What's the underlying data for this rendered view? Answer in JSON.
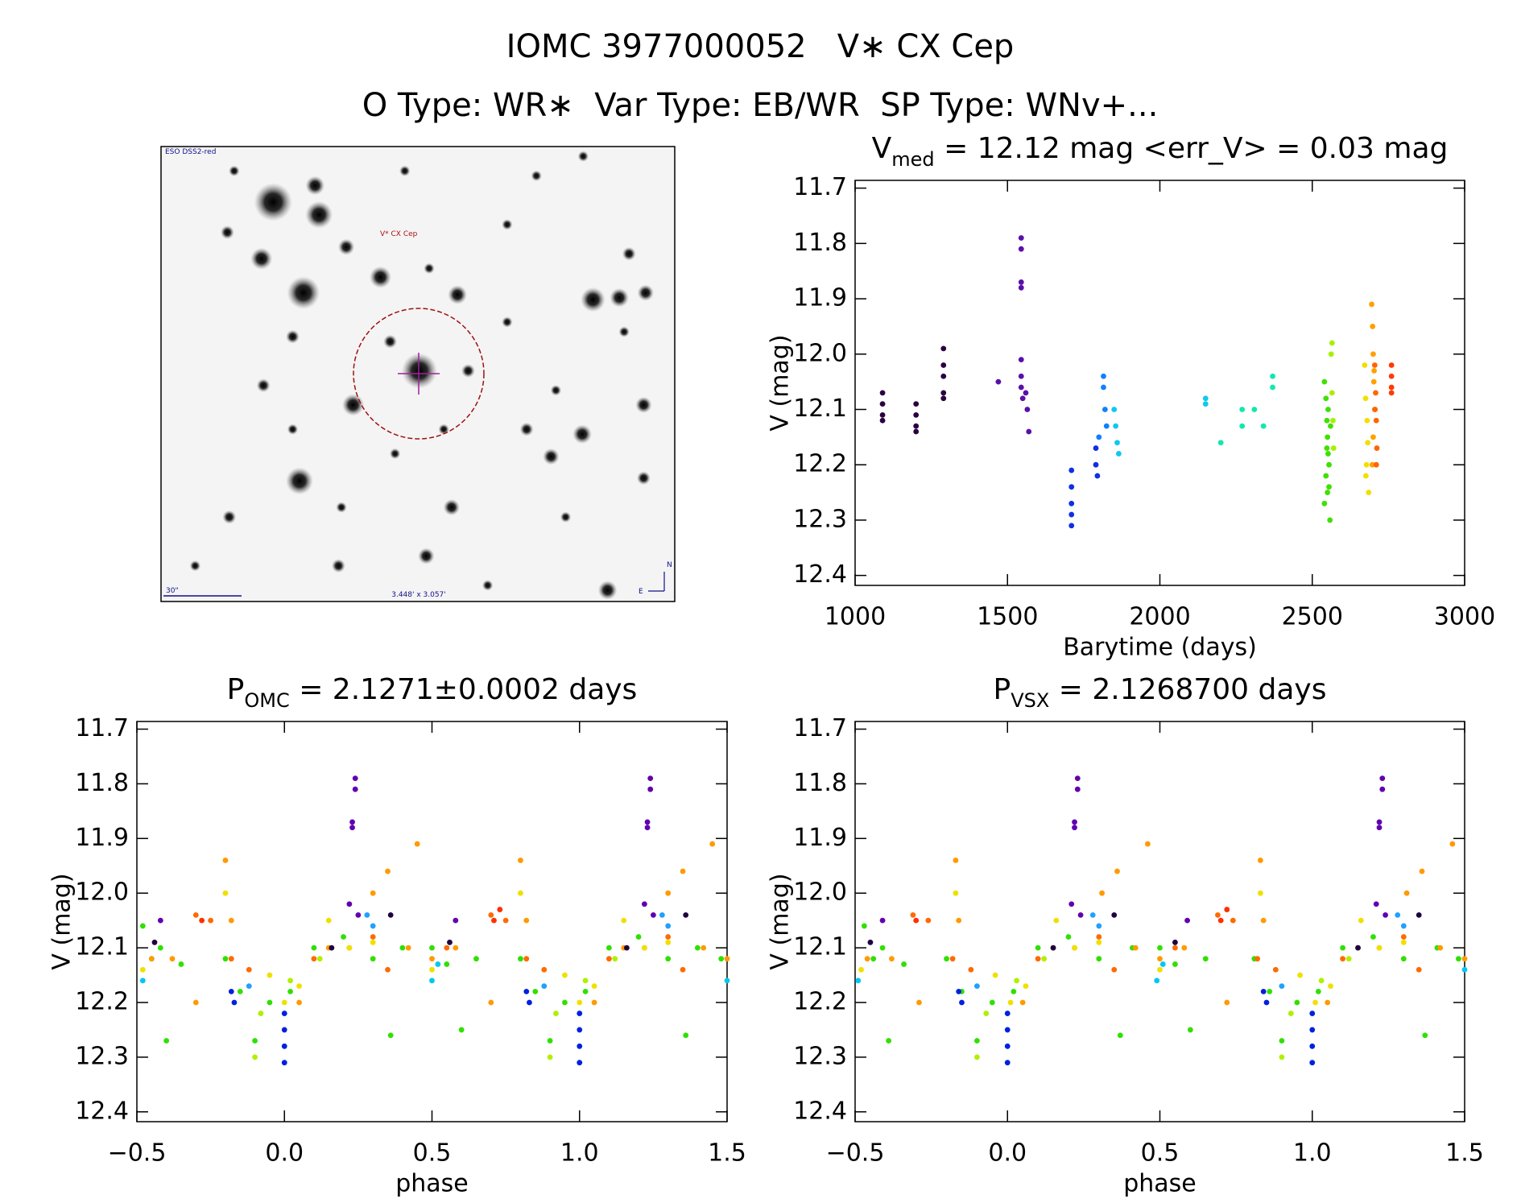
{
  "header": {
    "title": "IOMC 3977000052   V∗ CX Cep",
    "subtitle": "O Type: WR∗  Var Type: EB/WR  SP Type: WNv+..."
  },
  "image": {
    "survey": "ESO DSS2-red",
    "target": "V* CX Cep",
    "scale": "30\"",
    "fov": "3.448' x 3.057'",
    "north": "N",
    "east": "E"
  },
  "chart_data": [
    {
      "type": "scatter",
      "title": {
        "main": "V",
        "sub": "med",
        "rest": " = 12.12 mag <err_V> = 0.03 mag"
      },
      "x_label": "Barytime (days)",
      "y_label": "V (mag)",
      "xlim": [
        1000,
        3000
      ],
      "ylim": [
        12.418,
        11.686
      ],
      "xticks": [
        1000,
        1500,
        2000,
        2500,
        3000
      ],
      "yticks": [
        11.7,
        11.8,
        11.9,
        {
          "value": 12,
          "label": "12.0"
        },
        12.1,
        12.2,
        12.3,
        12.4
      ],
      "series": [
        {
          "color": "#2a0040",
          "x": [
            1090,
            1090,
            1090,
            1090,
            1200,
            1200,
            1200,
            1200,
            1290,
            1290,
            1290,
            1290,
            1290
          ],
          "y": [
            12.07,
            12.09,
            12.11,
            12.12,
            12.09,
            12.11,
            12.13,
            12.14,
            11.99,
            12.02,
            12.04,
            12.07,
            12.08
          ]
        },
        {
          "color": "#5a10a8",
          "x": [
            1470,
            1545,
            1545,
            1545,
            1545,
            1545,
            1545,
            1545,
            1550,
            1560,
            1565,
            1570
          ],
          "y": [
            12.05,
            11.79,
            11.81,
            11.87,
            11.88,
            12.01,
            12.04,
            12.06,
            12.08,
            12.07,
            12.1,
            12.14
          ]
        },
        {
          "color": "#1030e0",
          "x": [
            1710,
            1710,
            1710,
            1710,
            1710,
            1790,
            1790,
            1795
          ],
          "y": [
            12.21,
            12.24,
            12.27,
            12.29,
            12.31,
            12.17,
            12.2,
            12.22
          ]
        },
        {
          "color": "#1080ff",
          "x": [
            1800,
            1815,
            1815,
            1820,
            1825
          ],
          "y": [
            12.15,
            12.04,
            12.06,
            12.1,
            12.13
          ]
        },
        {
          "color": "#10c8f0",
          "x": [
            1850,
            1855,
            1860,
            1865,
            2150,
            2150
          ],
          "y": [
            12.1,
            12.13,
            12.16,
            12.18,
            12.08,
            12.09
          ]
        },
        {
          "color": "#10e8b0",
          "x": [
            2200,
            2270,
            2270,
            2310,
            2340,
            2370,
            2370
          ],
          "y": [
            12.16,
            12.1,
            12.13,
            12.1,
            12.13,
            12.04,
            12.06
          ]
        },
        {
          "color": "#40e000",
          "x": [
            2540,
            2545,
            2548,
            2550,
            2552,
            2555,
            2545,
            2550,
            2540,
            2558,
            2552,
            2548,
            2560,
            2555
          ],
          "y": [
            12.05,
            12.08,
            12.12,
            12.15,
            12.18,
            12.2,
            12.22,
            12.25,
            12.27,
            12.3,
            12.1,
            12.17,
            12.13,
            12.24
          ]
        },
        {
          "color": "#a8f000",
          "x": [
            2562,
            2565,
            2568,
            2570,
            2565
          ],
          "y": [
            12.0,
            12.07,
            12.12,
            12.17,
            11.98
          ]
        },
        {
          "color": "#f0e000",
          "x": [
            2672,
            2675,
            2680,
            2682,
            2678,
            2685,
            2676
          ],
          "y": [
            12.02,
            12.08,
            12.12,
            12.16,
            12.2,
            12.25,
            12.22
          ]
        },
        {
          "color": "#ffa000",
          "x": [
            2695,
            2698,
            2700,
            2702,
            2705,
            2700,
            2697,
            2703
          ],
          "y": [
            11.91,
            11.95,
            12.0,
            12.05,
            12.1,
            12.15,
            12.2,
            12.03
          ]
        },
        {
          "color": "#ff6400",
          "x": [
            2705,
            2708,
            2710,
            2712,
            2710,
            2706
          ],
          "y": [
            12.02,
            12.07,
            12.12,
            12.17,
            12.2,
            12.1
          ]
        },
        {
          "color": "#ff3a00",
          "x": [
            2760,
            2760,
            2760,
            2760
          ],
          "y": [
            12.02,
            12.04,
            12.06,
            12.07
          ]
        }
      ]
    },
    {
      "type": "scatter",
      "title": {
        "main": "P",
        "sub": "OMC",
        "rest": " = 2.1271±0.0002 days"
      },
      "x_label": "phase",
      "y_label": "V (mag)",
      "xlim": [
        -0.5,
        1.5
      ],
      "ylim": [
        12.418,
        11.686
      ],
      "xticks": [
        {
          "value": -0.5,
          "label": "−0.5"
        },
        {
          "value": 0,
          "label": "0.0"
        },
        0.5,
        {
          "value": 1,
          "label": "1.0"
        },
        1.5
      ],
      "yticks": [
        11.7,
        11.8,
        11.9,
        {
          "value": 12,
          "label": "12.0"
        },
        12.1,
        12.2,
        12.3,
        12.4
      ],
      "series": [
        {
          "color": "#30e000",
          "x": [
            -0.48,
            -0.45,
            -0.42,
            -0.4,
            -0.35,
            -0.2,
            -0.15,
            -0.1,
            -0.05,
            0.02,
            0.1,
            0.2,
            0.3,
            0.36,
            0.4,
            0.5,
            0.55,
            0.6,
            0.65,
            0.8,
            0.85,
            0.9,
            0.95,
            1.02,
            1.1,
            1.2,
            1.3,
            1.36,
            1.4,
            1.48
          ],
          "y": [
            12.06,
            12.12,
            12.1,
            12.27,
            12.13,
            12.12,
            12.18,
            12.27,
            12.2,
            12.18,
            12.1,
            12.08,
            12.12,
            12.26,
            12.1,
            12.1,
            12.13,
            12.25,
            12.12,
            12.12,
            12.18,
            12.27,
            12.2,
            12.18,
            12.1,
            12.08,
            12.12,
            12.26,
            12.1,
            12.12
          ]
        },
        {
          "color": "#ff9a00",
          "x": [
            -0.45,
            -0.38,
            -0.3,
            -0.2,
            -0.18,
            0.05,
            0.15,
            0.3,
            0.35,
            0.42,
            0.45,
            0.5,
            0.58,
            0.7,
            0.8,
            0.82,
            1.05,
            1.15,
            1.3,
            1.35,
            1.42,
            1.45,
            1.5
          ],
          "y": [
            12.12,
            12.12,
            12.2,
            11.94,
            12.05,
            12.2,
            12.1,
            12.0,
            11.96,
            12.1,
            11.91,
            12.12,
            12.1,
            12.2,
            11.94,
            12.05,
            12.2,
            12.1,
            12.0,
            11.96,
            12.1,
            11.91,
            12.12
          ]
        },
        {
          "color": "#ff6a00",
          "x": [
            -0.3,
            -0.25,
            -0.18,
            -0.12,
            0.1,
            0.22,
            0.3,
            0.35,
            0.55,
            0.7,
            0.75,
            0.82,
            0.88,
            1.1,
            1.22,
            1.3,
            1.35
          ],
          "y": [
            12.04,
            12.05,
            12.12,
            12.14,
            12.12,
            12.1,
            12.08,
            12.14,
            12.1,
            12.04,
            12.05,
            12.12,
            12.14,
            12.12,
            12.1,
            12.08,
            12.14
          ]
        },
        {
          "color": "#ff3000",
          "x": [
            -0.28,
            0.71,
            0.73
          ],
          "y": [
            12.05,
            12.05,
            12.03
          ]
        },
        {
          "color": "#f0e000",
          "x": [
            -0.48,
            -0.2,
            -0.05,
            0,
            0.05,
            0.15,
            0.22,
            0.3,
            0.5,
            0.8,
            0.95,
            1,
            1.05,
            1.15,
            1.22,
            1.3
          ],
          "y": [
            12.14,
            12.0,
            12.15,
            12.2,
            12.17,
            12.05,
            12.1,
            12.09,
            12.14,
            12.0,
            12.15,
            12.2,
            12.17,
            12.05,
            12.1,
            12.09
          ]
        },
        {
          "color": "#b0f000",
          "x": [
            -0.1,
            -0.08,
            0.02,
            0.12,
            0.9,
            0.92,
            1.02,
            1.12
          ],
          "y": [
            12.3,
            12.22,
            12.16,
            12.12,
            12.3,
            12.22,
            12.16,
            12.12
          ]
        },
        {
          "color": "#0020e0",
          "x": [
            -0.18,
            -0.17,
            0,
            0,
            0,
            0,
            0.82,
            0.83,
            1,
            1,
            1,
            1
          ],
          "y": [
            12.18,
            12.2,
            12.22,
            12.25,
            12.28,
            12.31,
            12.18,
            12.2,
            12.22,
            12.25,
            12.28,
            12.31
          ]
        },
        {
          "color": "#20a0ff",
          "x": [
            0.28,
            0.3,
            1.28,
            1.3,
            -0.12,
            0.88
          ],
          "y": [
            12.04,
            12.06,
            12.04,
            12.06,
            12.17,
            12.17
          ]
        },
        {
          "color": "#00c8f0",
          "x": [
            -0.48,
            0.5,
            0.52,
            1.5
          ],
          "y": [
            12.16,
            12.16,
            12.13,
            12.16
          ]
        },
        {
          "color": "#6000b0",
          "x": [
            0.24,
            0.24,
            0.23,
            0.23,
            0.22,
            0.25,
            -0.42,
            0.58,
            1.24,
            1.24,
            1.23,
            1.23,
            1.22,
            1.25
          ],
          "y": [
            11.79,
            11.81,
            11.87,
            11.88,
            12.02,
            12.04,
            12.05,
            12.05,
            11.79,
            11.81,
            11.87,
            11.88,
            12.02,
            12.04
          ]
        },
        {
          "color": "#200040",
          "x": [
            -0.44,
            0.16,
            0.56,
            1.16,
            0.36,
            1.36
          ],
          "y": [
            12.09,
            12.1,
            12.09,
            12.1,
            12.04,
            12.04
          ]
        }
      ]
    },
    {
      "type": "scatter",
      "title": {
        "main": "P",
        "sub": "VSX",
        "rest": " = 2.1268700 days"
      },
      "x_label": "phase",
      "y_label": "V (mag)",
      "xlim": [
        -0.5,
        1.5
      ],
      "ylim": [
        12.418,
        11.686
      ],
      "xticks": [
        {
          "value": -0.5,
          "label": "−0.5"
        },
        {
          "value": 0,
          "label": "0.0"
        },
        0.5,
        {
          "value": 1,
          "label": "1.0"
        },
        1.5
      ],
      "yticks": [
        11.7,
        11.8,
        11.9,
        {
          "value": 12,
          "label": "12.0"
        },
        12.1,
        12.2,
        12.3,
        12.4
      ],
      "series": [
        {
          "color": "#30e000",
          "x": [
            -0.47,
            -0.44,
            -0.41,
            -0.39,
            -0.34,
            -0.2,
            -0.15,
            -0.1,
            -0.05,
            0.02,
            0.1,
            0.2,
            0.3,
            0.37,
            0.41,
            0.5,
            0.55,
            0.6,
            0.65,
            0.81,
            0.86,
            0.9,
            0.95,
            1.02,
            1.1,
            1.2,
            1.3,
            1.37,
            1.41,
            1.48
          ],
          "y": [
            12.06,
            12.12,
            12.1,
            12.27,
            12.13,
            12.12,
            12.18,
            12.27,
            12.2,
            12.18,
            12.1,
            12.08,
            12.12,
            12.26,
            12.1,
            12.1,
            12.13,
            12.25,
            12.12,
            12.12,
            12.18,
            12.27,
            12.2,
            12.18,
            12.1,
            12.08,
            12.12,
            12.26,
            12.1,
            12.12
          ]
        },
        {
          "color": "#ff9a00",
          "x": [
            -0.46,
            -0.38,
            -0.29,
            -0.17,
            -0.16,
            0.05,
            0.15,
            0.31,
            0.36,
            0.42,
            0.46,
            0.5,
            0.58,
            0.72,
            0.83,
            0.84,
            1.05,
            1.15,
            1.31,
            1.36,
            1.42,
            1.46,
            1.5
          ],
          "y": [
            12.12,
            12.12,
            12.2,
            11.94,
            12.05,
            12.2,
            12.1,
            12.0,
            11.96,
            12.1,
            11.91,
            12.12,
            12.1,
            12.2,
            11.94,
            12.05,
            12.2,
            12.1,
            12.0,
            11.96,
            12.1,
            11.91,
            12.12
          ]
        },
        {
          "color": "#ff6a00",
          "x": [
            -0.31,
            -0.26,
            -0.18,
            -0.12,
            0.1,
            0.22,
            0.3,
            0.35,
            0.55,
            0.69,
            0.74,
            0.82,
            0.88,
            1.1,
            1.22,
            1.3,
            1.35
          ],
          "y": [
            12.04,
            12.05,
            12.12,
            12.14,
            12.12,
            12.1,
            12.08,
            12.14,
            12.1,
            12.04,
            12.05,
            12.12,
            12.14,
            12.12,
            12.1,
            12.08,
            12.14
          ]
        },
        {
          "color": "#ff3000",
          "x": [
            -0.3,
            0.7,
            0.72
          ],
          "y": [
            12.05,
            12.05,
            12.03
          ]
        },
        {
          "color": "#f0e000",
          "x": [
            -0.48,
            -0.17,
            -0.04,
            0.01,
            0.06,
            0.16,
            0.22,
            0.3,
            0.5,
            0.83,
            0.96,
            1.01,
            1.06,
            1.16,
            1.22,
            1.3
          ],
          "y": [
            12.14,
            12.0,
            12.15,
            12.2,
            12.17,
            12.05,
            12.1,
            12.09,
            12.14,
            12.0,
            12.15,
            12.2,
            12.17,
            12.05,
            12.1,
            12.09
          ]
        },
        {
          "color": "#b0f000",
          "x": [
            -0.1,
            -0.07,
            0.03,
            0.12,
            0.9,
            0.93,
            1.03,
            1.12
          ],
          "y": [
            12.3,
            12.22,
            12.16,
            12.12,
            12.3,
            12.22,
            12.16,
            12.12
          ]
        },
        {
          "color": "#0020e0",
          "x": [
            -0.16,
            -0.15,
            0,
            0,
            0,
            0,
            0.84,
            0.85,
            1,
            1,
            1,
            1
          ],
          "y": [
            12.18,
            12.2,
            12.22,
            12.25,
            12.28,
            12.31,
            12.18,
            12.2,
            12.22,
            12.25,
            12.28,
            12.31
          ]
        },
        {
          "color": "#20a0ff",
          "x": [
            0.28,
            0.3,
            1.28,
            1.3,
            -0.1,
            0.9
          ],
          "y": [
            12.04,
            12.06,
            12.04,
            12.06,
            12.17,
            12.17
          ]
        },
        {
          "color": "#00c8f0",
          "x": [
            -0.49,
            0.49,
            0.51,
            1.5
          ],
          "y": [
            12.16,
            12.16,
            12.13,
            12.14
          ]
        },
        {
          "color": "#6000b0",
          "x": [
            0.23,
            0.23,
            0.22,
            0.22,
            0.21,
            0.24,
            -0.41,
            0.59,
            1.23,
            1.23,
            1.22,
            1.22,
            1.21,
            1.24
          ],
          "y": [
            11.79,
            11.81,
            11.87,
            11.88,
            12.02,
            12.04,
            12.05,
            12.05,
            11.79,
            11.81,
            11.87,
            11.88,
            12.02,
            12.04
          ]
        },
        {
          "color": "#200040",
          "x": [
            -0.45,
            0.15,
            0.55,
            1.15,
            0.35,
            1.35
          ],
          "y": [
            12.09,
            12.1,
            12.09,
            12.1,
            12.04,
            12.04
          ]
        }
      ]
    }
  ]
}
